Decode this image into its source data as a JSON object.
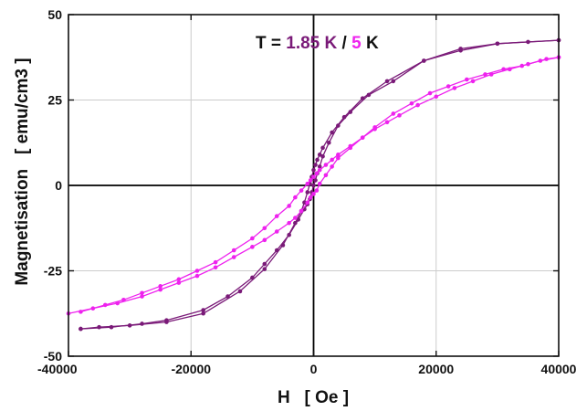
{
  "chart_data": {
    "type": "line",
    "xlabel": "H   [ Oe ]",
    "ylabel": "Magnetisation   [ emu/cm3 ]",
    "xlim": [
      -40000,
      40000
    ],
    "ylim": [
      -50,
      50
    ],
    "xticks": [
      -40000,
      -20000,
      0,
      20000,
      40000
    ],
    "yticks": [
      -50,
      -25,
      0,
      25,
      50
    ],
    "grid": true,
    "legend": {
      "position": "top-center",
      "parts": [
        {
          "text": "T = ",
          "color": "#111111"
        },
        {
          "text": "1.85 K",
          "color": "#7a1a78"
        },
        {
          "text": " / ",
          "color": "#111111"
        },
        {
          "text": "5",
          "color": "#ee22ee"
        },
        {
          "text": " K",
          "color": "#111111"
        }
      ]
    },
    "series": [
      {
        "color": "#7a1a78",
        "branch": "descending",
        "x": [
          40000,
          30000,
          24000,
          18000,
          12000,
          8000,
          5000,
          3000,
          1500,
          1000,
          600,
          300,
          0,
          -300,
          -600,
          -1000,
          -1500,
          -2000,
          -3000,
          -5000,
          -8000,
          -12000,
          -18000,
          -24000,
          -30000,
          -35000,
          -38000
        ],
        "y": [
          42.5,
          41.5,
          40,
          36.5,
          30.5,
          25.5,
          20,
          15.5,
          11,
          9,
          7.5,
          6,
          4.5,
          2.5,
          0.5,
          -2,
          -5,
          -7.5,
          -11,
          -17.5,
          -24.5,
          -31,
          -37.5,
          -40,
          -41,
          -41.5,
          -42
        ]
      },
      {
        "color": "#7a1a78",
        "branch": "ascending",
        "x": [
          -38000,
          -33000,
          -28000,
          -24000,
          -18000,
          -14000,
          -10000,
          -8000,
          -6000,
          -4000,
          -2500,
          -1500,
          -1000,
          -600,
          -300,
          0,
          300,
          600,
          1000,
          1500,
          2500,
          4000,
          6000,
          9000,
          13000,
          18000,
          24000,
          30000,
          35000,
          40000
        ],
        "y": [
          -42,
          -41.5,
          -40.5,
          -39.5,
          -36.5,
          -32.5,
          -27,
          -23,
          -19,
          -14.5,
          -10,
          -7,
          -5.5,
          -4,
          -2,
          0,
          1.5,
          3.5,
          5.5,
          8.5,
          12.5,
          17.5,
          21.5,
          26.5,
          30.5,
          36.5,
          39.5,
          41.5,
          42,
          42.5
        ]
      },
      {
        "color": "#ee22ee",
        "branch": "descending",
        "x": [
          40000,
          38000,
          35000,
          32000,
          29000,
          26000,
          23000,
          20000,
          17000,
          14000,
          12000,
          10000,
          8000,
          6000,
          4000,
          3000,
          2000,
          1000,
          500,
          0,
          -500,
          -1000,
          -2000,
          -3000,
          -4000,
          -6000,
          -8000,
          -10000,
          -13000,
          -16000,
          -19000,
          -22000,
          -25000,
          -28000,
          -31000,
          -34000,
          -38000
        ],
        "y": [
          37.5,
          37,
          35.5,
          34,
          32.5,
          30.5,
          28.5,
          26,
          23.5,
          20.5,
          18.5,
          16.5,
          14,
          11.5,
          9,
          7.5,
          6,
          4.5,
          3.5,
          2.5,
          1.5,
          0.5,
          -1.5,
          -3.5,
          -6,
          -9,
          -12.5,
          -15.5,
          -19,
          -22.5,
          -25,
          -27.5,
          -29.5,
          -31.5,
          -33.5,
          -35,
          -37
        ]
      },
      {
        "color": "#ee22ee",
        "branch": "ascending",
        "x": [
          -40000,
          -36000,
          -32000,
          -28000,
          -25000,
          -22000,
          -19000,
          -16000,
          -13000,
          -10000,
          -8000,
          -6000,
          -4000,
          -3000,
          -2000,
          -1000,
          -500,
          0,
          500,
          1000,
          2000,
          3000,
          4000,
          6000,
          8000,
          10000,
          13000,
          16000,
          19000,
          22000,
          25000,
          28000,
          31000,
          34000,
          37000,
          40000
        ],
        "y": [
          -37.5,
          -36,
          -34.5,
          -32.5,
          -30.5,
          -28.5,
          -26.5,
          -24,
          -21,
          -18,
          -16,
          -13.5,
          -11,
          -9.5,
          -7.5,
          -5,
          -3.5,
          -2.5,
          -1.5,
          0.5,
          3,
          5.5,
          8,
          11,
          14,
          17,
          21,
          24,
          27,
          29,
          31,
          32.5,
          34,
          35,
          36.5,
          37.5
        ]
      }
    ]
  }
}
